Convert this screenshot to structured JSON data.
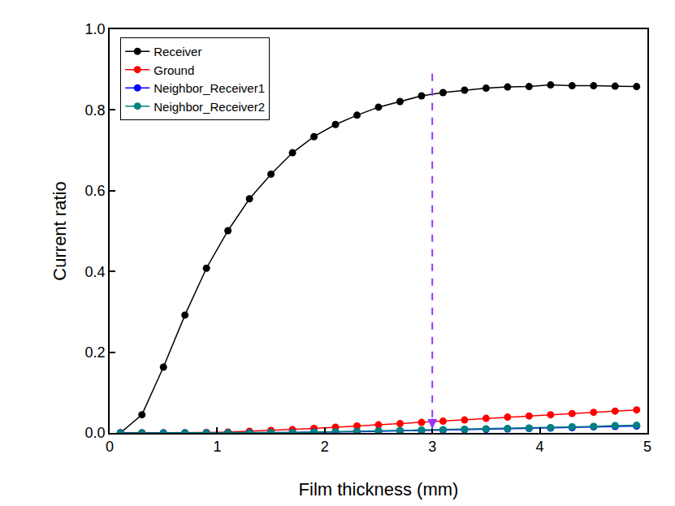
{
  "chart_data": {
    "type": "line",
    "x_label": "Film thickness (mm)",
    "y_label": "Current ratio",
    "x": [
      0.1,
      0.3,
      0.5,
      0.7,
      0.9,
      1.1,
      1.3,
      1.5,
      1.7,
      1.9,
      2.1,
      2.3,
      2.5,
      2.7,
      2.9,
      3.1,
      3.3,
      3.5,
      3.7,
      3.9,
      4.1,
      4.3,
      4.5,
      4.7,
      4.9
    ],
    "series": [
      {
        "name": "Receiver",
        "color": "#000000",
        "marker": "circle",
        "line_style": "solid",
        "values": [
          0.0,
          0.045,
          0.163,
          0.292,
          0.408,
          0.501,
          0.58,
          0.641,
          0.694,
          0.734,
          0.764,
          0.787,
          0.807,
          0.821,
          0.835,
          0.843,
          0.849,
          0.854,
          0.857,
          0.858,
          0.862,
          0.86,
          0.86,
          0.859,
          0.858
        ]
      },
      {
        "name": "Ground",
        "color": "#ff0000",
        "marker": "circle",
        "line_style": "solid",
        "values": [
          0.0,
          0.0,
          0.0,
          0.0,
          0.001,
          0.002,
          0.004,
          0.006,
          0.008,
          0.011,
          0.014,
          0.017,
          0.02,
          0.023,
          0.026,
          0.029,
          0.032,
          0.036,
          0.039,
          0.042,
          0.045,
          0.048,
          0.051,
          0.054,
          0.057
        ]
      },
      {
        "name": "Neighbor_Receiver1",
        "color": "#0000ff",
        "marker": "circle",
        "line_style": "solid",
        "values": [
          0.0,
          0.0,
          0.0,
          0.0,
          0.0,
          0.0,
          0.0,
          0.0,
          0.001,
          0.002,
          0.002,
          0.003,
          0.004,
          0.005,
          0.006,
          0.007,
          0.008,
          0.009,
          0.01,
          0.011,
          0.012,
          0.013,
          0.015,
          0.016,
          0.017
        ]
      },
      {
        "name": "Neighbor_Receiver2",
        "color": "#008080",
        "marker": "circle",
        "line_style": "solid",
        "values": [
          0.0,
          0.0,
          0.0,
          0.0,
          0.0,
          0.0,
          0.0,
          0.001,
          0.001,
          0.002,
          0.003,
          0.004,
          0.005,
          0.006,
          0.007,
          0.008,
          0.009,
          0.01,
          0.011,
          0.012,
          0.013,
          0.015,
          0.016,
          0.018,
          0.019
        ]
      }
    ],
    "arrow": {
      "x": 3,
      "y": [
        0.89,
        0.01
      ],
      "color": "#9933ff",
      "line_style": "dash"
    },
    "xlim": [
      0,
      5
    ],
    "xticks": [
      0,
      1,
      2,
      3,
      4,
      5
    ],
    "ylim": [
      0,
      1
    ],
    "yticks": [
      {
        "value": 0,
        "label": "0.0"
      },
      0.2,
      0.4,
      0.6,
      0.8,
      {
        "value": 1,
        "label": "1.0"
      }
    ],
    "grid": false,
    "legend": "top left"
  }
}
